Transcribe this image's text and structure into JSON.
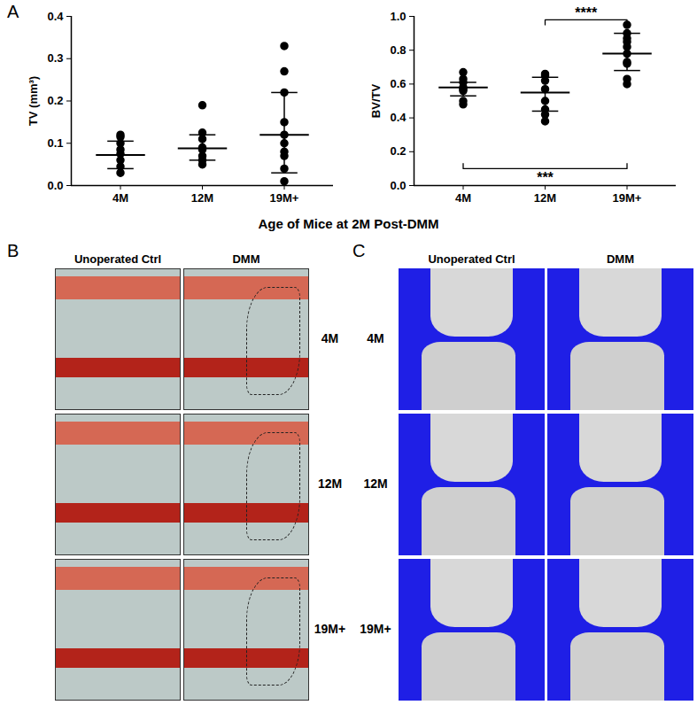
{
  "chart_data": [
    {
      "type": "scatter",
      "ylabel": "TV (mm³)",
      "categories": [
        "4M",
        "12M",
        "19M+"
      ],
      "points": [
        [
          0.12,
          0.115,
          0.1,
          0.085,
          0.075,
          0.06,
          0.045,
          0.03
        ],
        [
          0.19,
          0.125,
          0.11,
          0.09,
          0.085,
          0.07,
          0.06,
          0.05
        ],
        [
          0.33,
          0.27,
          0.22,
          0.15,
          0.12,
          0.1,
          0.08,
          0.07,
          0.04,
          0.01
        ]
      ],
      "center": [
        0.072,
        0.088,
        0.12
      ],
      "error_lower": [
        0.04,
        0.06,
        0.03
      ],
      "error_upper": [
        0.105,
        0.12,
        0.22
      ],
      "color": "#000000",
      "ylim": [
        0,
        0.4
      ],
      "yticks": [
        {
          "value": 0,
          "label": "0.0"
        },
        0.1,
        0.2,
        0.3,
        0.4
      ]
    },
    {
      "type": "scatter",
      "ylabel": "BV/TV",
      "categories": [
        "4M",
        "12M",
        "19M+"
      ],
      "points": [
        [
          0.67,
          0.63,
          0.61,
          0.58,
          0.57,
          0.56,
          0.5,
          0.48
        ],
        [
          0.66,
          0.65,
          0.62,
          0.57,
          0.5,
          0.45,
          0.42,
          0.38
        ],
        [
          0.95,
          0.9,
          0.87,
          0.85,
          0.82,
          0.78,
          0.73,
          0.72,
          0.63,
          0.6
        ]
      ],
      "center": [
        0.58,
        0.55,
        0.78
      ],
      "error_lower": [
        0.53,
        0.44,
        0.68
      ],
      "error_upper": [
        0.61,
        0.64,
        0.9
      ],
      "color": "#000000",
      "ylim": [
        0,
        1
      ],
      "yticks": [
        {
          "value": 0,
          "label": "0.0"
        },
        0.2,
        0.4,
        0.6,
        0.8,
        {
          "value": 1,
          "label": "1.0"
        }
      ],
      "annotations": [
        {
          "text": "****",
          "from": "12M",
          "to": "19M+",
          "y": 0.98
        },
        {
          "text": "***",
          "from": "4M",
          "to": "19M+",
          "y": 0.1
        }
      ]
    }
  ],
  "figure": {
    "panel_labels": [
      "A",
      "B",
      "C"
    ],
    "xlabel": "Age of Mice at 2M Post-DMM",
    "image_panels": [
      {
        "label": "B",
        "columns": [
          "Unoperated Ctrl",
          "DMM"
        ],
        "rows": [
          "4M",
          "12M",
          "19M+"
        ]
      },
      {
        "label": "C",
        "columns": [
          "Unoperated Ctrl",
          "DMM"
        ],
        "rows": [
          "4M",
          "12M",
          "19M+"
        ]
      }
    ]
  }
}
